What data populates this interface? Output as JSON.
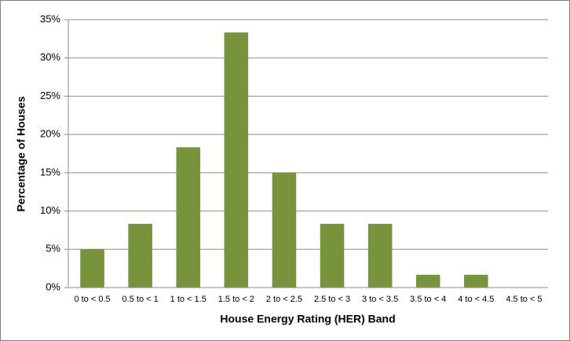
{
  "chart_data": {
    "type": "bar",
    "categories": [
      "0 to < 0.5",
      "0.5 to < 1",
      "1 to < 1.5",
      "1.5 to < 2",
      "2 to < 2.5",
      "2.5 to < 3",
      "3 to < 3.5",
      "3.5 to < 4",
      "4 to < 4.5",
      "4.5 to < 5"
    ],
    "values": [
      5,
      8.33,
      18.33,
      33.33,
      15,
      8.33,
      8.33,
      1.67,
      1.67,
      0
    ],
    "color": "#77933c",
    "x_label": "House Energy Rating (HER) Band",
    "y_label": "Percentage of Houses",
    "ylim": [
      0,
      35
    ],
    "yticks": [
      {
        "value": 0,
        "label": "0%"
      },
      {
        "value": 5,
        "label": "5%"
      },
      {
        "value": 10,
        "label": "10%"
      },
      {
        "value": 15,
        "label": "15%"
      },
      {
        "value": 20,
        "label": "20%"
      },
      {
        "value": 25,
        "label": "25%"
      },
      {
        "value": 30,
        "label": "30%"
      },
      {
        "value": 35,
        "label": "35%"
      }
    ],
    "grid": true
  }
}
